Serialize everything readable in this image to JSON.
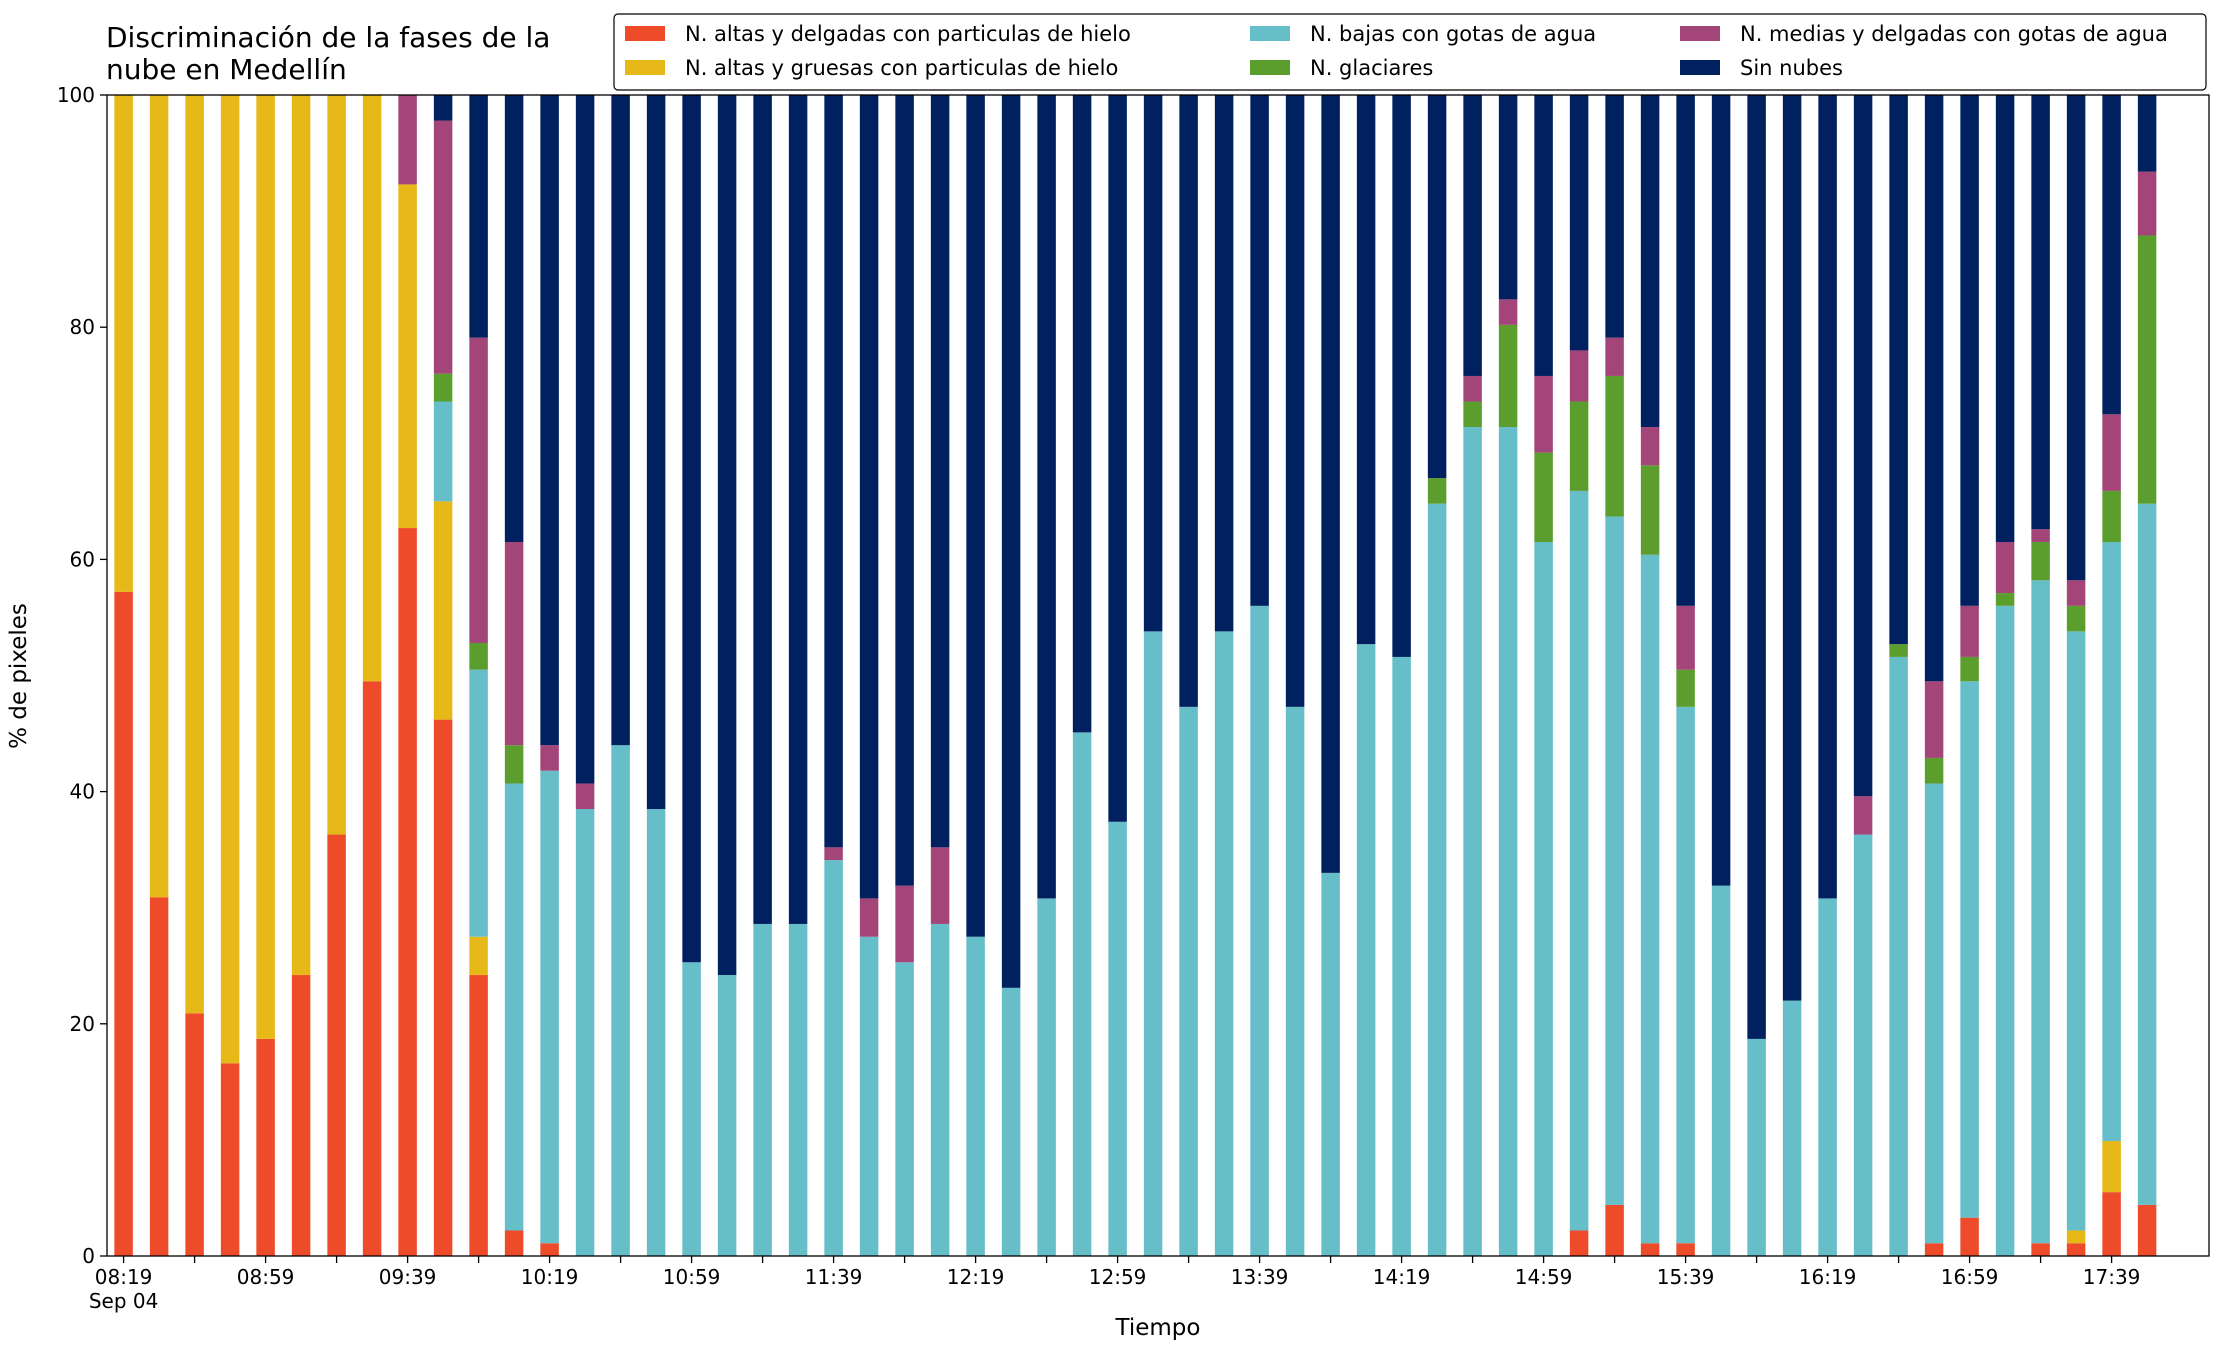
{
  "chart_data": {
    "type": "stacked-bar",
    "title": "Discriminación de la fases de la\nnube en Medellín",
    "xlabel": "Tiempo",
    "ylabel": "% de pixeles",
    "date_label": "Sep 04",
    "categories": [
      "08:19",
      null,
      null,
      null,
      "08:59",
      null,
      null,
      null,
      "09:39",
      null,
      null,
      null,
      "10:19",
      null,
      null,
      null,
      "10:59",
      null,
      null,
      null,
      "11:39",
      null,
      null,
      null,
      "12:19",
      null,
      null,
      null,
      "12:59",
      null,
      null,
      null,
      "13:39",
      null,
      null,
      null,
      "14:19",
      null,
      null,
      null,
      "14:59",
      null,
      null,
      null,
      "15:39",
      null,
      null,
      null,
      "16:19",
      null,
      null,
      null,
      "16:59",
      null,
      null,
      null,
      "17:39",
      null
    ],
    "ylim": [
      0,
      100
    ],
    "yticks": [
      0,
      20,
      40,
      60,
      80,
      100
    ],
    "grid": false,
    "legend": "top-right",
    "series": [
      {
        "name": "N. altas y delgadas con particulas de hielo",
        "color": "#ee4b2b",
        "values": [
          57.2,
          30.9,
          20.9,
          16.6,
          18.7,
          24.2,
          36.3,
          49.5,
          62.7,
          46.2,
          24.2,
          2.2,
          1.1,
          0,
          0,
          0,
          0,
          0,
          0,
          0,
          0,
          0,
          0,
          0,
          0,
          0,
          0,
          0,
          0,
          0,
          0,
          0,
          0,
          0,
          0,
          0,
          0,
          0,
          0,
          0,
          0,
          2.2,
          4.4,
          1.1,
          1.1,
          0,
          0,
          0,
          0,
          0,
          0,
          1.1,
          3.3,
          0,
          1.1,
          1.1,
          5.5,
          4.4
        ]
      },
      {
        "name": "N. altas y gruesas con particulas de hielo",
        "color": "#e6b818",
        "values": [
          42.8,
          69.1,
          79.1,
          83.4,
          81.3,
          75.8,
          63.7,
          50.5,
          29.6,
          18.8,
          3.3,
          0,
          0,
          0,
          0,
          0,
          0,
          0,
          0,
          0,
          0,
          0,
          0,
          0,
          0,
          0,
          0,
          0,
          0,
          0,
          0,
          0,
          0,
          0,
          0,
          0,
          0,
          0,
          0,
          0,
          0,
          0,
          0,
          0,
          0,
          0,
          0,
          0,
          0,
          0,
          0,
          0,
          0,
          0,
          0,
          1.1,
          4.4,
          0
        ]
      },
      {
        "name": "N. bajas con gotas de agua",
        "color": "#66bec9",
        "values": [
          0,
          0,
          0,
          0,
          0,
          0,
          0,
          0,
          0,
          8.6,
          23,
          38.5,
          40.7,
          38.5,
          44,
          38.5,
          25.3,
          24.2,
          28.6,
          28.6,
          34.1,
          27.5,
          25.3,
          28.6,
          27.5,
          23.1,
          30.8,
          45.1,
          37.4,
          53.8,
          47.3,
          53.8,
          56,
          47.3,
          33,
          52.7,
          51.6,
          64.8,
          71.4,
          71.4,
          61.5,
          63.7,
          59.3,
          59.3,
          46.2,
          31.9,
          18.7,
          22,
          30.8,
          36.3,
          51.6,
          39.6,
          46.2,
          56,
          57.1,
          51.6,
          51.6,
          60.4
        ]
      },
      {
        "name": "N. glaciares",
        "color": "#5c9e2e",
        "values": [
          0,
          0,
          0,
          0,
          0,
          0,
          0,
          0,
          0,
          2.4,
          2.3,
          3.3,
          0,
          0,
          0,
          0,
          0,
          0,
          0,
          0,
          0,
          0,
          0,
          0,
          0,
          0,
          0,
          0,
          0,
          0,
          0,
          0,
          0,
          0,
          0,
          0,
          0,
          2.2,
          2.2,
          8.8,
          7.7,
          7.7,
          12.1,
          7.7,
          3.2,
          0,
          0,
          0,
          0,
          0,
          1.1,
          2.2,
          2.1,
          1.1,
          3.3,
          2.2,
          4.4,
          23.1
        ]
      },
      {
        "name": "N. medias y delgadas con gotas de agua",
        "color": "#a4457a",
        "values": [
          0,
          0,
          0,
          0,
          0,
          0,
          0,
          0,
          7.7,
          21.8,
          26.3,
          17.5,
          2.2,
          2.2,
          0,
          0,
          0,
          0,
          0,
          0,
          1.1,
          3.3,
          6.6,
          6.6,
          0,
          0,
          0,
          0,
          0,
          0,
          0,
          0,
          0,
          0,
          0,
          0,
          0,
          0,
          2.2,
          2.2,
          6.6,
          4.4,
          3.3,
          3.3,
          5.5,
          0,
          0,
          0,
          0,
          3.3,
          0,
          6.6,
          4.4,
          4.4,
          1.1,
          2.2,
          6.6,
          5.5
        ]
      },
      {
        "name": "Sin nubes",
        "color": "#00205f",
        "values": [
          0,
          0,
          0,
          0,
          0,
          0,
          0,
          0,
          0,
          2.2,
          20.9,
          38.5,
          56,
          59.3,
          56,
          61.5,
          74.7,
          75.8,
          71.4,
          71.4,
          64.8,
          69.2,
          68.1,
          64.8,
          72.5,
          76.9,
          69.2,
          54.9,
          62.6,
          46.2,
          52.7,
          46.2,
          44,
          52.7,
          67,
          47.3,
          48.4,
          33,
          24.2,
          17.6,
          24.2,
          22,
          20.9,
          28.6,
          44,
          68.1,
          81.3,
          78,
          69.2,
          60.4,
          47.3,
          50.5,
          44,
          38.5,
          37.4,
          41.8,
          27.5,
          6.6
        ]
      }
    ]
  }
}
